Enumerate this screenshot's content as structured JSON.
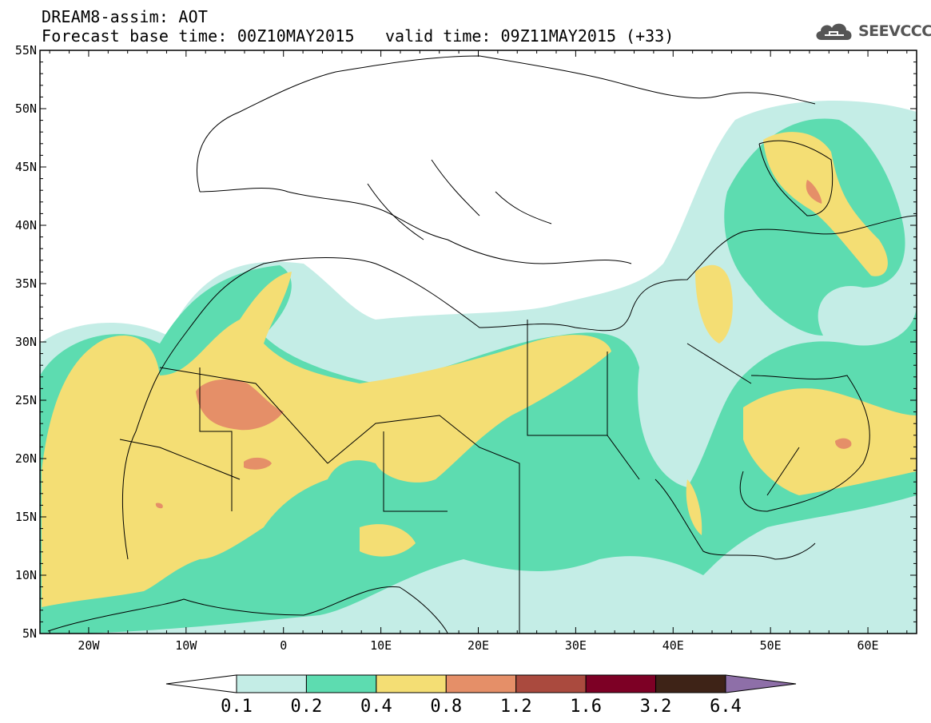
{
  "header": {
    "title": "DREAM8-assim: AOT",
    "base_time": "Forecast base time: 00Z10MAY2015",
    "valid_time": "valid time: 09Z11MAY2015 (+33)"
  },
  "logo": {
    "text": "SEEVCCC",
    "icon": "cloud-icon"
  },
  "map": {
    "projection": "lat-lon",
    "lon_range": [
      -25,
      65
    ],
    "lat_range": [
      5,
      55
    ],
    "lat_ticks": [
      "5N",
      "10N",
      "15N",
      "20N",
      "25N",
      "30N",
      "35N",
      "40N",
      "45N",
      "50N",
      "55N"
    ],
    "lon_ticks": [
      "20W",
      "10W",
      "0",
      "10E",
      "20E",
      "30E",
      "40E",
      "50E",
      "60E"
    ]
  },
  "colorbar": {
    "labels": [
      "0.1",
      "0.2",
      "0.4",
      "0.8",
      "1.2",
      "1.6",
      "3.2",
      "6.4"
    ],
    "colors": [
      "#ffffff",
      "#c4ede6",
      "#5ddcb0",
      "#f4de74",
      "#e58f68",
      "#aa4a3e",
      "#7d0025",
      "#3e2317",
      "#8e6fa8"
    ]
  }
}
